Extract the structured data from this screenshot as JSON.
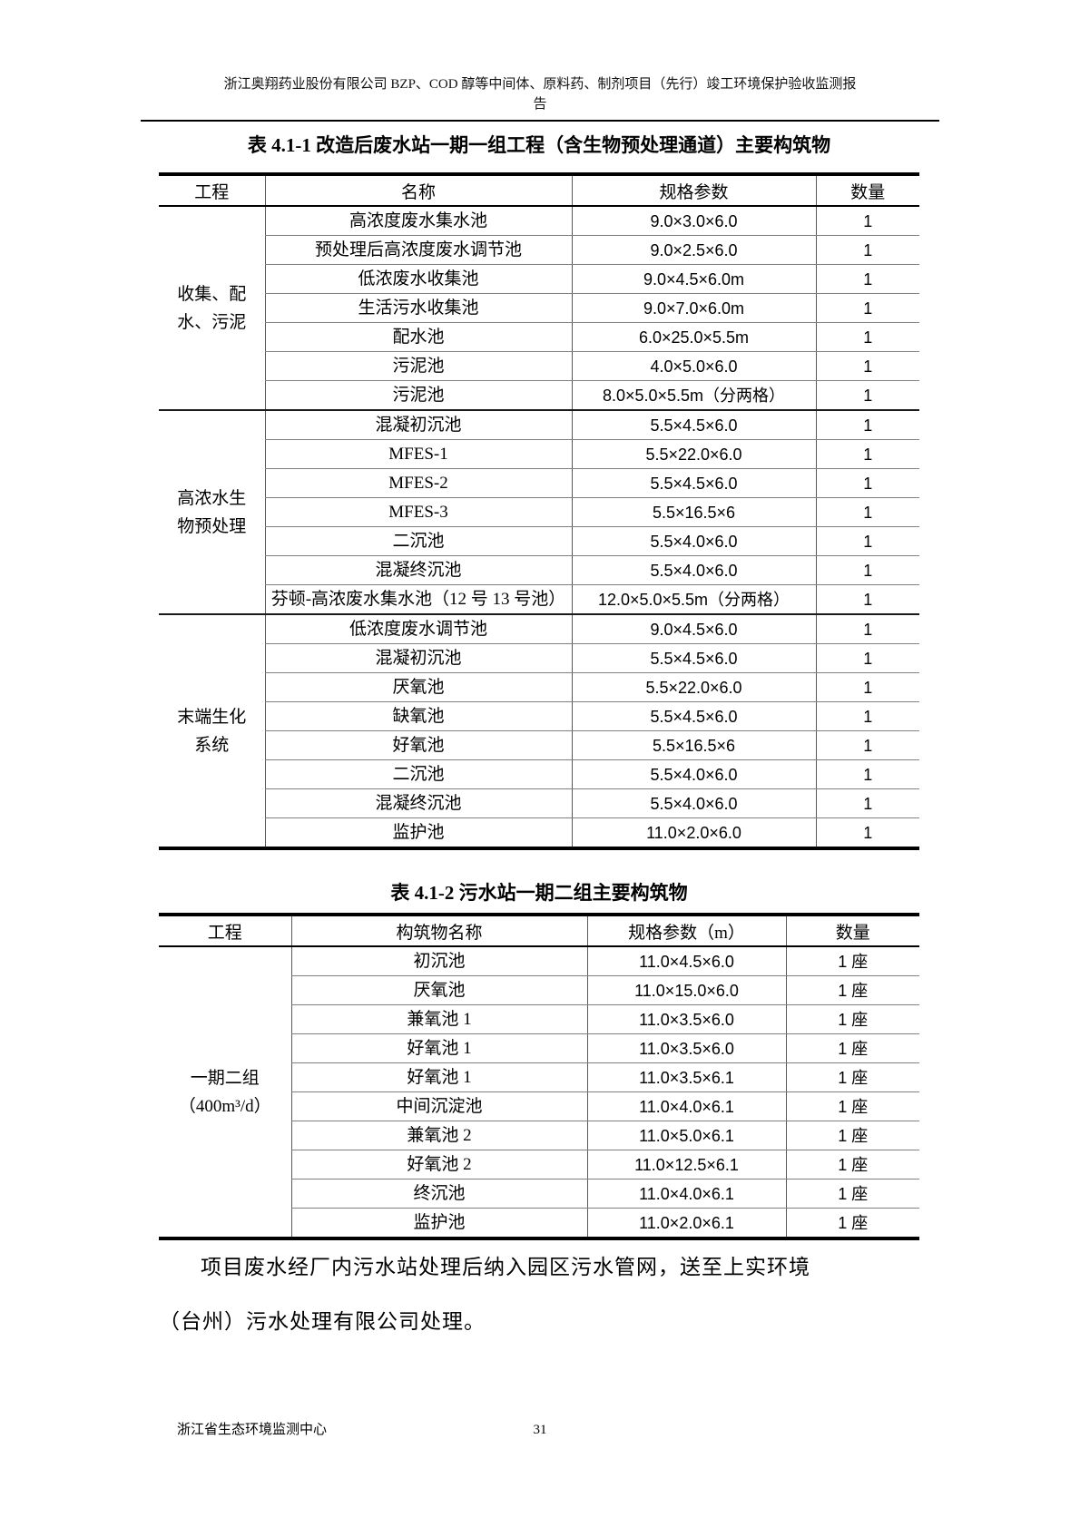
{
  "page": {
    "running_head_line1": "浙江奥翔药业股份有限公司 BZP、COD 醇等中间体、原料药、制剂项目（先行）竣工环境保护验收监测报",
    "running_head_line2": "告",
    "footer_left": "浙江省生态环境监测中心",
    "page_number": "31"
  },
  "tables": [
    {
      "title": "表 4.1-1 改造后废水站一期一组工程（含生物预处理通道）主要构筑物",
      "columns": [
        "工程",
        "名称",
        "规格参数",
        "数量"
      ],
      "groups": [
        {
          "label_lines": [
            "收集、配",
            "水、污泥"
          ],
          "rows": [
            {
              "name": "高浓度废水集水池",
              "spec": "9.0×3.0×6.0",
              "qty": "1"
            },
            {
              "name": "预处理后高浓度废水调节池",
              "spec": "9.0×2.5×6.0",
              "qty": "1"
            },
            {
              "name": "低浓废水收集池",
              "spec": "9.0×4.5×6.0m",
              "qty": "1"
            },
            {
              "name": "生活污水收集池",
              "spec": "9.0×7.0×6.0m",
              "qty": "1"
            },
            {
              "name": "配水池",
              "spec": "6.0×25.0×5.5m",
              "qty": "1"
            },
            {
              "name": "污泥池",
              "spec": "4.0×5.0×6.0",
              "qty": "1"
            },
            {
              "name": "污泥池",
              "spec": "8.0×5.0×5.5m（分两格）",
              "qty": "1"
            }
          ]
        },
        {
          "label_lines": [
            "高浓水生",
            "物预处理"
          ],
          "rows": [
            {
              "name": "混凝初沉池",
              "spec": "5.5×4.5×6.0",
              "qty": "1"
            },
            {
              "name": "MFES-1",
              "spec": "5.5×22.0×6.0",
              "qty": "1"
            },
            {
              "name": "MFES-2",
              "spec": "5.5×4.5×6.0",
              "qty": "1"
            },
            {
              "name": "MFES-3",
              "spec": "5.5×16.5×6",
              "qty": "1"
            },
            {
              "name": "二沉池",
              "spec": "5.5×4.0×6.0",
              "qty": "1"
            },
            {
              "name": "混凝终沉池",
              "spec": "5.5×4.0×6.0",
              "qty": "1"
            },
            {
              "name": "芬顿-高浓废水集水池（12 号 13 号池）",
              "spec": "12.0×5.0×5.5m（分两格）",
              "qty": "1"
            }
          ]
        },
        {
          "label_lines": [
            "末端生化",
            "系统"
          ],
          "rows": [
            {
              "name": "低浓度废水调节池",
              "spec": "9.0×4.5×6.0",
              "qty": "1"
            },
            {
              "name": "混凝初沉池",
              "spec": "5.5×4.5×6.0",
              "qty": "1"
            },
            {
              "name": "厌氧池",
              "spec": "5.5×22.0×6.0",
              "qty": "1"
            },
            {
              "name": "缺氧池",
              "spec": "5.5×4.5×6.0",
              "qty": "1"
            },
            {
              "name": "好氧池",
              "spec": "5.5×16.5×6",
              "qty": "1"
            },
            {
              "name": "二沉池",
              "spec": "5.5×4.0×6.0",
              "qty": "1"
            },
            {
              "name": "混凝终沉池",
              "spec": "5.5×4.0×6.0",
              "qty": "1"
            },
            {
              "name": "监护池",
              "spec": "11.0×2.0×6.0",
              "qty": "1"
            }
          ]
        }
      ]
    },
    {
      "title": "表 4.1-2 污水站一期二组主要构筑物",
      "columns": [
        "工程",
        "构筑物名称",
        "规格参数（m）",
        "数量"
      ],
      "groups": [
        {
          "label_lines": [
            "一期二组",
            "（400m³/d）"
          ],
          "rows": [
            {
              "name": "初沉池",
              "spec": "11.0×4.5×6.0",
              "qty": "1 座"
            },
            {
              "name": "厌氧池",
              "spec": "11.0×15.0×6.0",
              "qty": "1 座"
            },
            {
              "name": "兼氧池 1",
              "spec": "11.0×3.5×6.0",
              "qty": "1 座"
            },
            {
              "name": "好氧池 1",
              "spec": "11.0×3.5×6.0",
              "qty": "1 座"
            },
            {
              "name": "好氧池 1",
              "spec": "11.0×3.5×6.1",
              "qty": "1 座"
            },
            {
              "name": "中间沉淀池",
              "spec": "11.0×4.0×6.1",
              "qty": "1 座"
            },
            {
              "name": "兼氧池 2",
              "spec": "11.0×5.0×6.1",
              "qty": "1 座"
            },
            {
              "name": "好氧池 2",
              "spec": "11.0×12.5×6.1",
              "qty": "1 座"
            },
            {
              "name": "终沉池",
              "spec": "11.0×4.0×6.1",
              "qty": "1 座"
            },
            {
              "name": "监护池",
              "spec": "11.0×2.0×6.1",
              "qty": "1 座"
            }
          ]
        }
      ]
    }
  ],
  "paragraph": {
    "line1": "项目废水经厂内污水站处理后纳入园区污水管网，送至上实环境",
    "line2": "（台州）污水处理有限公司处理。"
  }
}
